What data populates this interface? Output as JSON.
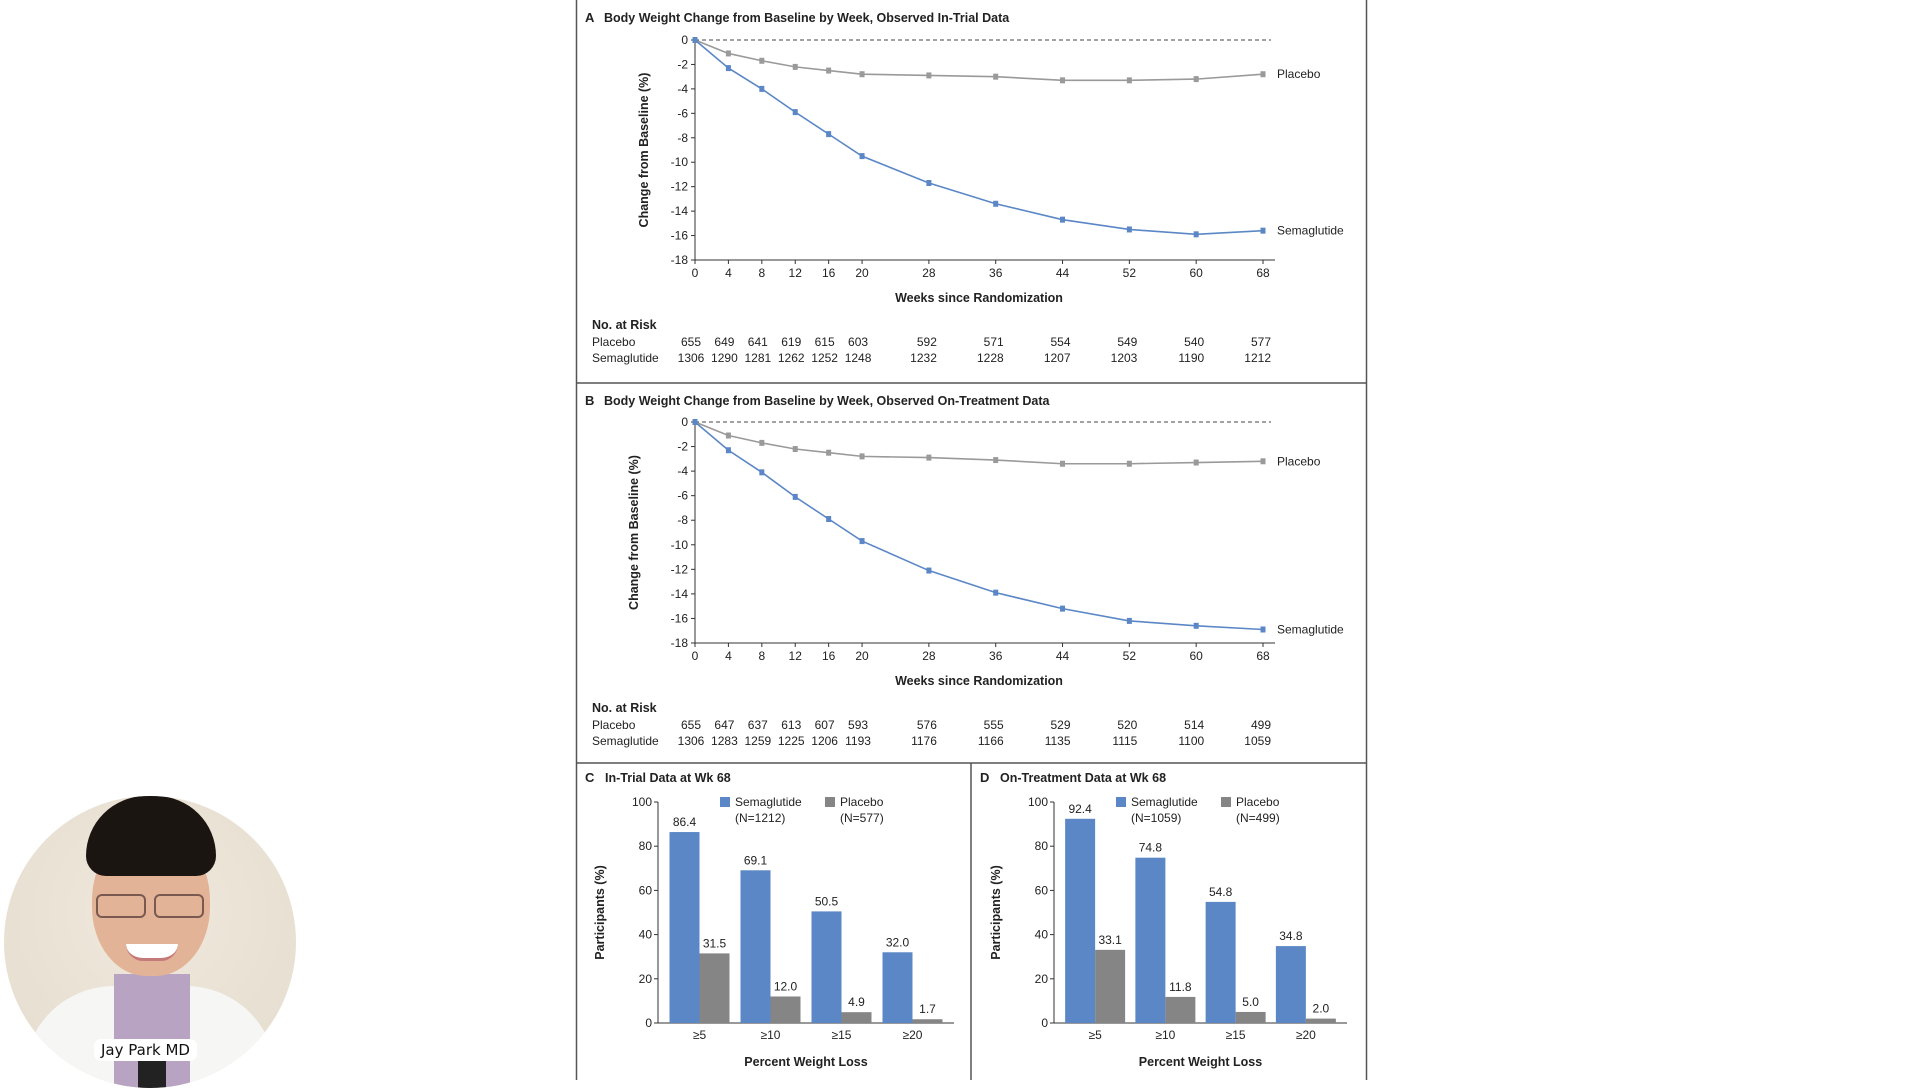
{
  "overlay": {
    "presenter_name": "Jay Park MD"
  },
  "colors": {
    "semaglutide": "#5b87c6",
    "placebo_line": "#9a9a9a",
    "placebo_bar": "#858585",
    "axis": "#333333"
  },
  "chart_data": [
    {
      "panel": "A",
      "type": "line",
      "title": "Body Weight Change from Baseline by Week, Observed In-Trial Data",
      "xlabel": "Weeks since Randomization",
      "ylabel": "Change from Baseline (%)",
      "x": [
        0,
        4,
        8,
        12,
        16,
        20,
        28,
        36,
        44,
        52,
        60,
        68
      ],
      "xticks": [
        0,
        4,
        8,
        12,
        16,
        20,
        28,
        36,
        44,
        52,
        60,
        68
      ],
      "yticks": [
        0,
        -2,
        -4,
        -6,
        -8,
        -10,
        -12,
        -14,
        -16,
        -18
      ],
      "ylim": [
        -18,
        0
      ],
      "reference_line": 0,
      "series": [
        {
          "name": "Placebo",
          "values": [
            0,
            -1.1,
            -1.7,
            -2.2,
            -2.5,
            -2.8,
            -2.9,
            -3.0,
            -3.3,
            -3.3,
            -3.2,
            -2.8
          ]
        },
        {
          "name": "Semaglutide",
          "values": [
            0,
            -2.3,
            -4.0,
            -5.9,
            -7.7,
            -9.5,
            -11.7,
            -13.4,
            -14.7,
            -15.5,
            -15.9,
            -15.6
          ]
        }
      ],
      "at_risk": {
        "label": "No. at Risk",
        "rows": [
          {
            "name": "Placebo",
            "values": [
              "655",
              "649",
              "641",
              "619",
              "615",
              "603",
              "592",
              "571",
              "554",
              "549",
              "540",
              "577"
            ]
          },
          {
            "name": "Semaglutide",
            "values": [
              "1306",
              "1290",
              "1281",
              "1262",
              "1252",
              "1248",
              "1232",
              "1228",
              "1207",
              "1203",
              "1190",
              "1212"
            ]
          }
        ]
      }
    },
    {
      "panel": "B",
      "type": "line",
      "title": "Body Weight Change from Baseline by Week, Observed On-Treatment Data",
      "xlabel": "Weeks since Randomization",
      "ylabel": "Change from Baseline (%)",
      "x": [
        0,
        4,
        8,
        12,
        16,
        20,
        28,
        36,
        44,
        52,
        60,
        68
      ],
      "xticks": [
        0,
        4,
        8,
        12,
        16,
        20,
        28,
        36,
        44,
        52,
        60,
        68
      ],
      "yticks": [
        0,
        -2,
        -4,
        -6,
        -8,
        -10,
        -12,
        -14,
        -16,
        -18
      ],
      "ylim": [
        -18,
        0
      ],
      "reference_line": 0,
      "series": [
        {
          "name": "Placebo",
          "values": [
            0,
            -1.1,
            -1.7,
            -2.2,
            -2.5,
            -2.8,
            -2.9,
            -3.1,
            -3.4,
            -3.4,
            -3.3,
            -3.2
          ]
        },
        {
          "name": "Semaglutide",
          "values": [
            0,
            -2.3,
            -4.1,
            -6.1,
            -7.9,
            -9.7,
            -12.1,
            -13.9,
            -15.2,
            -16.2,
            -16.6,
            -16.9
          ]
        }
      ],
      "at_risk": {
        "label": "No. at Risk",
        "rows": [
          {
            "name": "Placebo",
            "values": [
              "655",
              "647",
              "637",
              "613",
              "607",
              "593",
              "576",
              "555",
              "529",
              "520",
              "514",
              "499"
            ]
          },
          {
            "name": "Semaglutide",
            "values": [
              "1306",
              "1283",
              "1259",
              "1225",
              "1206",
              "1193",
              "1176",
              "1166",
              "1135",
              "1115",
              "1100",
              "1059"
            ]
          }
        ]
      }
    },
    {
      "panel": "C",
      "type": "bar",
      "title": "In-Trial Data at Wk 68",
      "xlabel": "Percent Weight Loss",
      "ylabel": "Participants (%)",
      "categories": [
        "≥5",
        "≥10",
        "≥15",
        "≥20"
      ],
      "yticks": [
        0,
        20,
        40,
        60,
        80,
        100
      ],
      "ylim": [
        0,
        100
      ],
      "series": [
        {
          "name": "Semaglutide",
          "n_label": "(N=1212)",
          "values": [
            86.4,
            69.1,
            50.5,
            32.0
          ],
          "labels": [
            "86.4",
            "69.1",
            "50.5",
            "32.0"
          ]
        },
        {
          "name": "Placebo",
          "n_label": "(N=577)",
          "values": [
            31.5,
            12.0,
            4.9,
            1.7
          ],
          "labels": [
            "31.5",
            "12.0",
            "4.9",
            "1.7"
          ]
        }
      ]
    },
    {
      "panel": "D",
      "type": "bar",
      "title": "On-Treatment Data at Wk 68",
      "xlabel": "Percent Weight Loss",
      "ylabel": "Participants (%)",
      "categories": [
        "≥5",
        "≥10",
        "≥15",
        "≥20"
      ],
      "yticks": [
        0,
        20,
        40,
        60,
        80,
        100
      ],
      "ylim": [
        0,
        100
      ],
      "series": [
        {
          "name": "Semaglutide",
          "n_label": "(N=1059)",
          "values": [
            92.4,
            74.8,
            54.8,
            34.8
          ],
          "labels": [
            "92.4",
            "74.8",
            "54.8",
            "34.8"
          ]
        },
        {
          "name": "Placebo",
          "n_label": "(N=499)",
          "values": [
            33.1,
            11.8,
            5.0,
            2.0
          ],
          "labels": [
            "33.1",
            "11.8",
            "5.0",
            "2.0"
          ]
        }
      ]
    }
  ]
}
